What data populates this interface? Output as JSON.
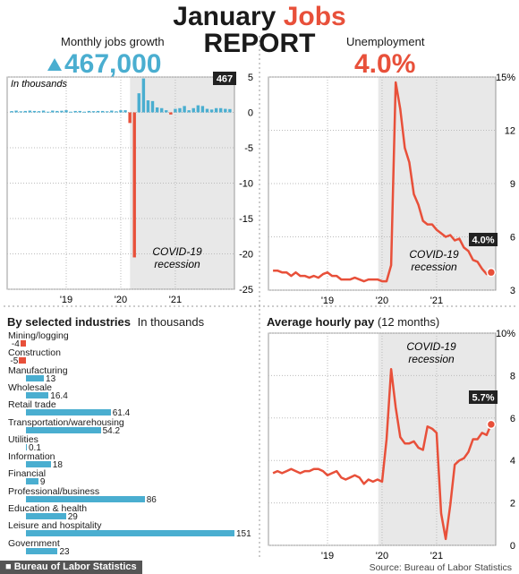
{
  "header": {
    "title_part1": "January ",
    "title_accent": "Jobs",
    "title_line2": "REPORT",
    "jobs_label": "Monthly jobs growth",
    "jobs_value": "467,000",
    "unemp_label": "Unemployment",
    "unemp_value": "4.0%"
  },
  "colors": {
    "blue": "#4aaed0",
    "red": "#e8503a",
    "shade": "#e8e8e8",
    "dark": "#222222"
  },
  "chart_data": [
    {
      "id": "jobs",
      "type": "bar",
      "ylabel": "In thousands",
      "ylim": [
        -25,
        5
      ],
      "yticks": [
        5,
        0,
        -5,
        -10,
        -15,
        -20,
        -25
      ],
      "xlim": [
        2017.917,
        2022.084
      ],
      "xticks": [
        {
          "x": 2019,
          "label": "'19"
        },
        {
          "x": 2020,
          "label": "'20"
        },
        {
          "x": 2021,
          "label": "'21"
        }
      ],
      "recession": [
        2020.17,
        2022.084
      ],
      "recession_label": [
        "COVID-19",
        "recession"
      ],
      "callout": "467",
      "x": [
        2018.0,
        2018.083,
        2018.167,
        2018.25,
        2018.333,
        2018.417,
        2018.5,
        2018.583,
        2018.667,
        2018.75,
        2018.833,
        2018.917,
        2019.0,
        2019.083,
        2019.167,
        2019.25,
        2019.333,
        2019.417,
        2019.5,
        2019.583,
        2019.667,
        2019.75,
        2019.833,
        2019.917,
        2020.0,
        2020.083,
        2020.167,
        2020.25,
        2020.333,
        2020.417,
        2020.5,
        2020.583,
        2020.667,
        2020.75,
        2020.833,
        2020.917,
        2021.0,
        2021.083,
        2021.167,
        2021.25,
        2021.333,
        2021.417,
        2021.5,
        2021.583,
        2021.667,
        2021.75,
        2021.833,
        2021.917,
        2022.0
      ],
      "values": [
        0.18,
        0.25,
        0.15,
        0.2,
        0.25,
        0.2,
        0.17,
        0.25,
        0.1,
        0.25,
        0.2,
        0.23,
        0.3,
        0.1,
        0.2,
        0.2,
        0.1,
        0.2,
        0.17,
        0.2,
        0.2,
        0.15,
        0.25,
        0.15,
        0.3,
        0.3,
        -1.5,
        -20.5,
        2.7,
        4.8,
        1.7,
        1.6,
        0.7,
        0.6,
        0.3,
        -0.3,
        0.5,
        0.6,
        0.9,
        0.3,
        0.6,
        1.0,
        0.9,
        0.5,
        0.4,
        0.6,
        0.6,
        0.5,
        0.467
      ]
    },
    {
      "id": "unemployment",
      "type": "line",
      "ylim": [
        3,
        15
      ],
      "yticks": [
        {
          "v": 15,
          "label": "15%"
        },
        {
          "v": 12,
          "label": "12"
        },
        {
          "v": 9,
          "label": "9"
        },
        {
          "v": 6,
          "label": "6"
        },
        {
          "v": 3,
          "label": "3"
        }
      ],
      "xlim": [
        2017.917,
        2022.084
      ],
      "xticks": [
        {
          "x": 2019,
          "label": "'19"
        },
        {
          "x": 2020,
          "label": "'20"
        },
        {
          "x": 2021,
          "label": "'21"
        }
      ],
      "recession": [
        2019.93,
        2022.084
      ],
      "recession_label": [
        "COVID-19",
        "recession"
      ],
      "callout": "4.0%",
      "x": [
        2018.0,
        2018.083,
        2018.167,
        2018.25,
        2018.333,
        2018.417,
        2018.5,
        2018.583,
        2018.667,
        2018.75,
        2018.833,
        2018.917,
        2019.0,
        2019.083,
        2019.167,
        2019.25,
        2019.333,
        2019.417,
        2019.5,
        2019.583,
        2019.667,
        2019.75,
        2019.833,
        2019.917,
        2020.0,
        2020.083,
        2020.167,
        2020.25,
        2020.333,
        2020.417,
        2020.5,
        2020.583,
        2020.667,
        2020.75,
        2020.833,
        2020.917,
        2021.0,
        2021.083,
        2021.167,
        2021.25,
        2021.333,
        2021.417,
        2021.5,
        2021.583,
        2021.667,
        2021.75,
        2021.833,
        2021.917,
        2022.0
      ],
      "values": [
        4.1,
        4.1,
        4.0,
        4.0,
        3.8,
        4.0,
        3.8,
        3.8,
        3.7,
        3.8,
        3.7,
        3.9,
        4.0,
        3.8,
        3.8,
        3.6,
        3.6,
        3.6,
        3.7,
        3.6,
        3.5,
        3.6,
        3.6,
        3.6,
        3.5,
        3.5,
        4.4,
        14.7,
        13.2,
        11.0,
        10.2,
        8.4,
        7.8,
        6.9,
        6.7,
        6.7,
        6.4,
        6.2,
        6.0,
        6.1,
        5.8,
        5.9,
        5.4,
        5.2,
        4.7,
        4.6,
        4.2,
        3.9,
        4.0
      ]
    },
    {
      "id": "industries",
      "type": "bar",
      "title": "By selected industries",
      "unit": "In thousands",
      "max": 151,
      "categories": [
        "Mining/logging",
        "Construction",
        "Manufacturing",
        "Wholesale",
        "Retail trade",
        "Transportation/warehousing",
        "Utilities",
        "Information",
        "Financial",
        "Professional/business",
        "Education & health",
        "Leisure and hospitality",
        "Government"
      ],
      "values": [
        -4,
        -5,
        13,
        16.4,
        61.4,
        54.2,
        0.1,
        18,
        9,
        86,
        29,
        151,
        23
      ],
      "value_labels": [
        "-4",
        "-5",
        "13",
        "16.4",
        "61.4",
        "54.2",
        "0.1",
        "18",
        "9",
        "86",
        "29",
        "151",
        "23"
      ]
    },
    {
      "id": "hourly_pay",
      "type": "line",
      "title": "Average hourly pay",
      "subtitle": "(12 months)",
      "ylim": [
        0,
        10
      ],
      "yticks": [
        {
          "v": 10,
          "label": "10%"
        },
        {
          "v": 8,
          "label": "8"
        },
        {
          "v": 6,
          "label": "6"
        },
        {
          "v": 4,
          "label": "4"
        },
        {
          "v": 2,
          "label": "2"
        },
        {
          "v": 0,
          "label": "0"
        }
      ],
      "xlim": [
        2017.917,
        2022.084
      ],
      "xticks": [
        {
          "x": 2019,
          "label": "'19"
        },
        {
          "x": 2020,
          "label": "'20"
        },
        {
          "x": 2021,
          "label": "'21"
        }
      ],
      "recession": [
        2019.93,
        2022.084
      ],
      "recession_label": [
        "COVID-19",
        "recession"
      ],
      "callout": "5.7%",
      "x": [
        2018.0,
        2018.083,
        2018.167,
        2018.25,
        2018.333,
        2018.417,
        2018.5,
        2018.583,
        2018.667,
        2018.75,
        2018.833,
        2018.917,
        2019.0,
        2019.083,
        2019.167,
        2019.25,
        2019.333,
        2019.417,
        2019.5,
        2019.583,
        2019.667,
        2019.75,
        2019.833,
        2019.917,
        2020.0,
        2020.083,
        2020.167,
        2020.25,
        2020.333,
        2020.417,
        2020.5,
        2020.583,
        2020.667,
        2020.75,
        2020.833,
        2020.917,
        2021.0,
        2021.083,
        2021.167,
        2021.25,
        2021.333,
        2021.417,
        2021.5,
        2021.583,
        2021.667,
        2021.75,
        2021.833,
        2021.917,
        2022.0
      ],
      "values": [
        3.4,
        3.5,
        3.4,
        3.5,
        3.6,
        3.5,
        3.4,
        3.5,
        3.5,
        3.6,
        3.6,
        3.5,
        3.3,
        3.4,
        3.5,
        3.2,
        3.1,
        3.2,
        3.3,
        3.2,
        2.9,
        3.1,
        3.0,
        3.1,
        3.0,
        5.0,
        8.3,
        6.5,
        5.1,
        4.8,
        4.8,
        4.9,
        4.6,
        4.5,
        5.6,
        5.5,
        5.3,
        1.5,
        0.3,
        1.9,
        3.8,
        4.0,
        4.1,
        4.4,
        5.0,
        5.0,
        5.3,
        5.2,
        5.7
      ]
    }
  ],
  "footer": {
    "credit": "Bureau of Labor Statistics",
    "source": "Source: Bureau of Labor Statistics"
  }
}
